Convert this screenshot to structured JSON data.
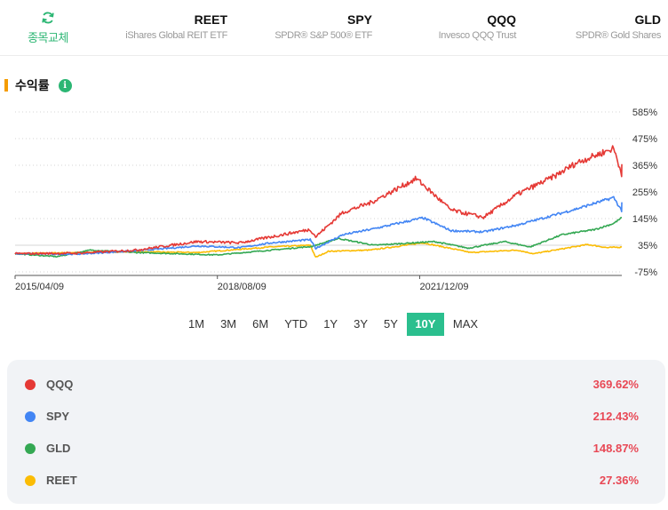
{
  "header": {
    "swap_label": "종목교체",
    "tickers": [
      {
        "symbol": "REET",
        "name": "iShares Global REIT ETF"
      },
      {
        "symbol": "SPY",
        "name": "SPDR® S&P 500® ETF"
      },
      {
        "symbol": "QQQ",
        "name": "Invesco QQQ Trust"
      },
      {
        "symbol": "GLD",
        "name": "SPDR® Gold Shares"
      }
    ]
  },
  "section": {
    "title": "수익률",
    "info_icon": "i"
  },
  "chart_data": {
    "type": "line",
    "title": "",
    "xlabel": "",
    "ylabel": "",
    "ylim": [
      -75,
      585
    ],
    "y_ticks": [
      "585%",
      "475%",
      "365%",
      "255%",
      "145%",
      "35%",
      "-75%"
    ],
    "x_ticks": [
      "2015/04/09",
      "2018/08/09",
      "2021/12/09"
    ],
    "grid": "horizontal dotted",
    "series": [
      {
        "name": "QQQ",
        "color": "#e53935",
        "x": [
          "2015/04/09",
          "2016/04/09",
          "2017/04/09",
          "2018/04/09",
          "2018/12/24",
          "2019/07/01",
          "2020/02/19",
          "2020/03/23",
          "2020/09/01",
          "2021/02/15",
          "2021/11/19",
          "2022/06/16",
          "2022/12/28",
          "2023/07/19",
          "2024/03/01",
          "2024/07/10",
          "2025/02/19",
          "2025/04/08",
          "2025/04/09"
        ],
        "values": [
          0,
          2,
          15,
          50,
          45,
          70,
          100,
          70,
          170,
          210,
          310,
          180,
          150,
          245,
          320,
          375,
          435,
          330,
          369.62
        ]
      },
      {
        "name": "SPY",
        "color": "#4285f4",
        "x": [
          "2015/04/09",
          "2016/04/09",
          "2017/04/09",
          "2018/04/09",
          "2018/12/24",
          "2019/07/01",
          "2020/02/19",
          "2020/03/23",
          "2020/09/01",
          "2021/02/15",
          "2021/12/29",
          "2022/06/16",
          "2022/12/28",
          "2023/07/19",
          "2024/03/01",
          "2024/07/10",
          "2025/02/19",
          "2025/04/08",
          "2025/04/09"
        ],
        "values": [
          0,
          -2,
          12,
          32,
          25,
          45,
          58,
          22,
          78,
          100,
          148,
          95,
          90,
          118,
          160,
          185,
          232,
          178,
          212.43
        ]
      },
      {
        "name": "GLD",
        "color": "#34a853",
        "x": [
          "2015/04/09",
          "2015/12/17",
          "2016/07/06",
          "2017/04/09",
          "2018/08/09",
          "2019/06/30",
          "2020/03/01",
          "2020/08/06",
          "2021/03/08",
          "2022/03/08",
          "2022/09/28",
          "2023/05/04",
          "2023/10/05",
          "2024/04/12",
          "2024/10/30",
          "2025/02/19",
          "2025/04/09"
        ],
        "values": [
          0,
          -12,
          15,
          5,
          -5,
          15,
          30,
          63,
          35,
          50,
          23,
          50,
          28,
          78,
          100,
          125,
          148.87
        ]
      },
      {
        "name": "REET",
        "color": "#fbbc04",
        "x": [
          "2015/04/09",
          "2016/04/09",
          "2017/04/09",
          "2018/04/09",
          "2019/07/01",
          "2020/02/19",
          "2020/03/23",
          "2020/06/08",
          "2021/02/15",
          "2021/12/29",
          "2022/10/12",
          "2023/07/19",
          "2023/10/27",
          "2024/09/16",
          "2025/01/10",
          "2025/04/09"
        ],
        "values": [
          0,
          5,
          8,
          5,
          28,
          35,
          -15,
          10,
          15,
          45,
          5,
          15,
          0,
          38,
          25,
          27.36
        ]
      }
    ]
  },
  "ranges": {
    "items": [
      "1M",
      "3M",
      "6M",
      "YTD",
      "1Y",
      "3Y",
      "5Y",
      "10Y",
      "MAX"
    ],
    "active": "10Y"
  },
  "legend": [
    {
      "name": "QQQ",
      "color": "#e53935",
      "value": "369.62%"
    },
    {
      "name": "SPY",
      "color": "#4285f4",
      "value": "212.43%"
    },
    {
      "name": "GLD",
      "color": "#34a853",
      "value": "148.87%"
    },
    {
      "name": "REET",
      "color": "#fbbc04",
      "value": "27.36%"
    }
  ]
}
